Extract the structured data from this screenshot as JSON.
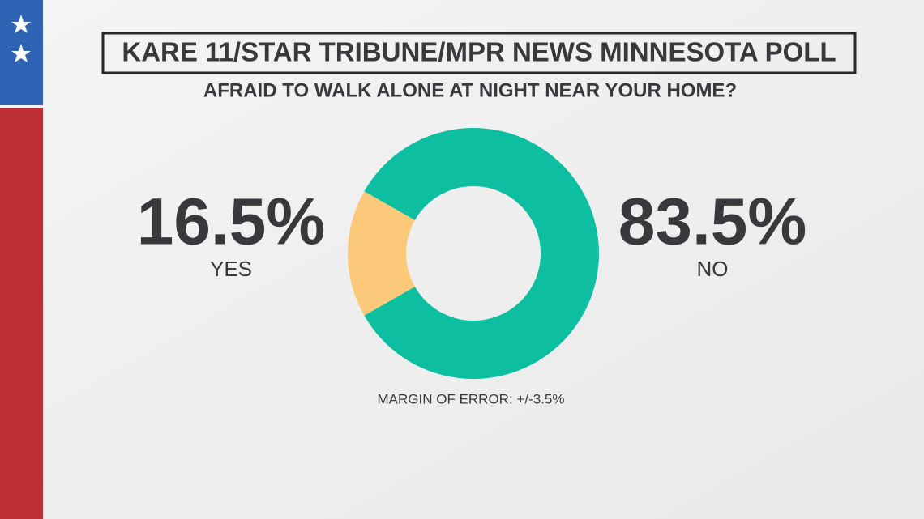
{
  "chart_data": {
    "type": "pie",
    "title": "KARE 11/STAR TRIBUNE/MPR NEWS MINNESOTA POLL",
    "subtitle": "AFRAID TO WALK ALONE AT NIGHT NEAR YOUR HOME?",
    "categories": [
      "YES",
      "NO"
    ],
    "values": [
      16.5,
      83.5
    ],
    "value_labels": [
      "16.5%",
      "83.5%"
    ],
    "colors": [
      "#fcc97a",
      "#0dbfa0"
    ],
    "note": "MARGIN OF ERROR: +/-3.5%"
  }
}
